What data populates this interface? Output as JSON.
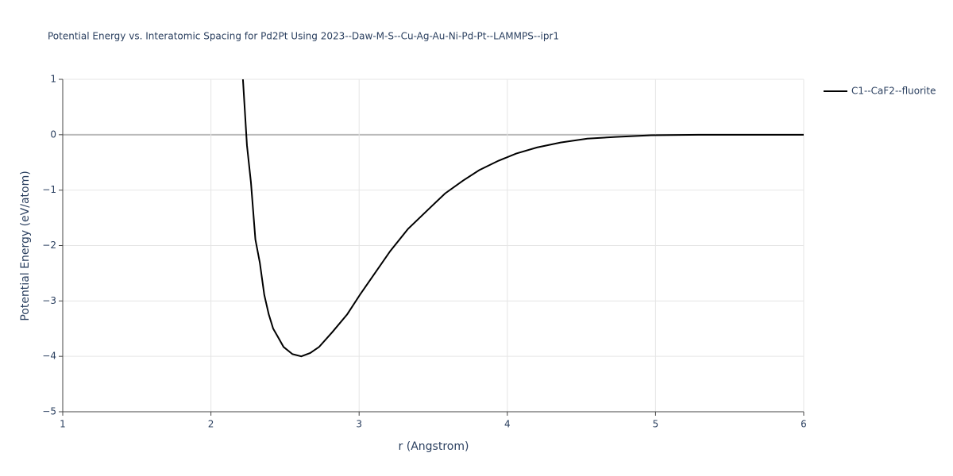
{
  "chart_data": {
    "type": "line",
    "title": "Potential Energy vs. Interatomic Spacing for Pd2Pt Using 2023--Daw-M-S--Cu-Ag-Au-Ni-Pd-Pt--LAMMPS--ipr1",
    "xlabel": "r (Angstrom)",
    "ylabel": "Potential Energy (eV/atom)",
    "xlim": [
      1,
      6
    ],
    "ylim": [
      -5,
      1
    ],
    "xticks": [
      1,
      2,
      3,
      4,
      5,
      6
    ],
    "yticks": [
      {
        "value": -5,
        "label": "−5"
      },
      {
        "value": -4,
        "label": "−4"
      },
      {
        "value": -3,
        "label": "−3"
      },
      {
        "value": -2,
        "label": "−2"
      },
      {
        "value": -1,
        "label": "−1"
      },
      0,
      1
    ],
    "grid": true,
    "legend": "top-right",
    "x": [
      2.216,
      2.243,
      2.27,
      2.3,
      2.33,
      2.36,
      2.39,
      2.42,
      2.45,
      2.49,
      2.55,
      2.61,
      2.67,
      2.73,
      2.82,
      2.92,
      3.01,
      3.21,
      3.33,
      3.47,
      3.58,
      3.7,
      3.81,
      3.94,
      4.06,
      4.2,
      4.36,
      4.54,
      4.73,
      4.97,
      5.29,
      6.0
    ],
    "series": [
      {
        "name": "C1--CaF2--fluorite",
        "color": "#000000",
        "values": [
          1,
          -0.19,
          -0.86,
          -1.89,
          -2.31,
          -2.89,
          -3.24,
          -3.5,
          -3.64,
          -3.83,
          -3.96,
          -4.0,
          -3.94,
          -3.83,
          -3.56,
          -3.24,
          -2.87,
          -2.1,
          -1.7,
          -1.34,
          -1.06,
          -0.83,
          -0.64,
          -0.47,
          -0.34,
          -0.23,
          -0.14,
          -0.07,
          -0.04,
          -0.01,
          0,
          0
        ]
      }
    ]
  }
}
